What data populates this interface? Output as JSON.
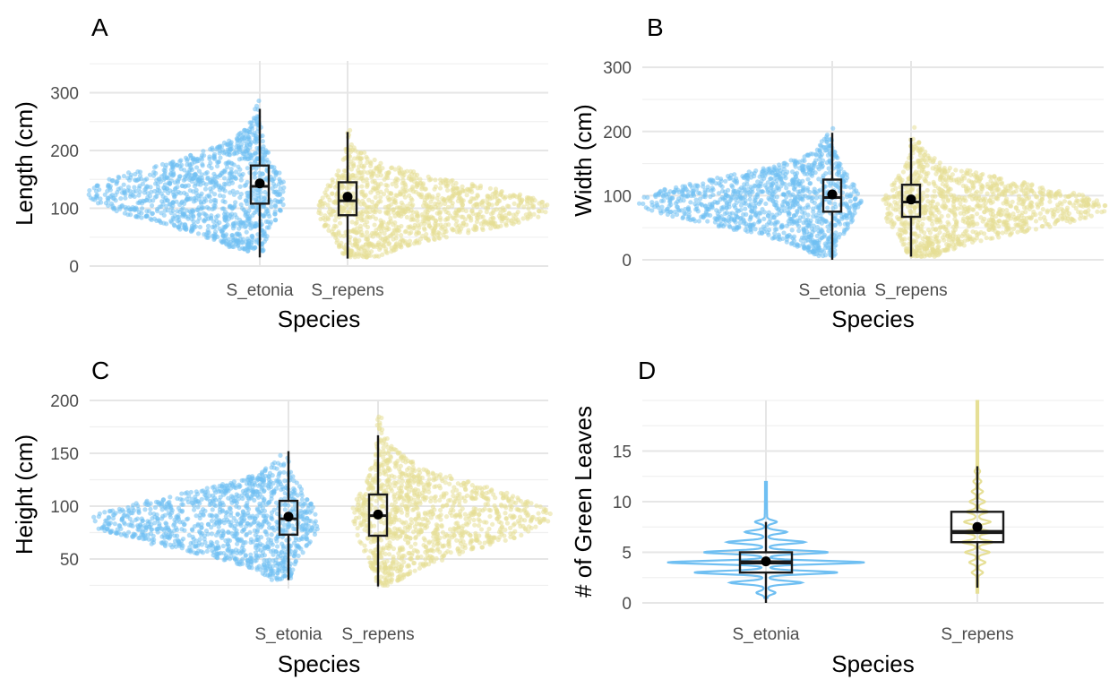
{
  "colors": {
    "S_etonia": "#6fbff2",
    "S_repens": "#e6df96",
    "box": "#1a1a1a",
    "mean": "#000000",
    "grid": "#e6e6e6"
  },
  "chart_data": [
    {
      "panel_label": "A",
      "type": "violin-box",
      "style": "mirrored-jitter",
      "xlabel": "Species",
      "ylabel": "Length (cm)",
      "categories": [
        "S_etonia",
        "S_repens"
      ],
      "ylim": [
        0,
        355
      ],
      "yticks": [
        0,
        100,
        200,
        300
      ],
      "grid": true,
      "groups": [
        {
          "name": "S_etonia",
          "whisker_low": 15,
          "q1": 108,
          "median": 138,
          "q3": 174,
          "whisker_high": 272,
          "mean": 143,
          "min": 25,
          "max": 345,
          "mode": 125
        },
        {
          "name": "S_repens",
          "whisker_low": 13,
          "q1": 88,
          "median": 113,
          "q3": 145,
          "whisker_high": 232,
          "mean": 120,
          "min": 15,
          "max": 315,
          "mode": 100
        }
      ]
    },
    {
      "panel_label": "B",
      "type": "violin-box",
      "style": "mirrored-jitter",
      "xlabel": "Species",
      "ylabel": "Width (cm)",
      "categories": [
        "S_etonia",
        "S_repens"
      ],
      "ylim": [
        0,
        310
      ],
      "yticks": [
        0,
        100,
        200,
        300
      ],
      "grid": true,
      "groups": [
        {
          "name": "S_etonia",
          "whisker_low": 0,
          "q1": 75,
          "median": 97,
          "q3": 125,
          "whisker_high": 198,
          "mean": 102,
          "min": 5,
          "max": 305,
          "mode": 90
        },
        {
          "name": "S_repens",
          "whisker_low": 5,
          "q1": 67,
          "median": 90,
          "q3": 117,
          "whisker_high": 190,
          "mean": 94,
          "min": 5,
          "max": 295,
          "mode": 82
        }
      ]
    },
    {
      "panel_label": "C",
      "type": "violin-box",
      "style": "mirrored-jitter",
      "xlabel": "Species",
      "ylabel": "Height (cm)",
      "categories": [
        "S_etonia",
        "S_repens"
      ],
      "ylim": [
        22,
        200
      ],
      "yticks": [
        50,
        100,
        150,
        200
      ],
      "grid": true,
      "groups": [
        {
          "name": "S_etonia",
          "whisker_low": 30,
          "q1": 73,
          "median": 88,
          "q3": 105,
          "whisker_high": 152,
          "mean": 90,
          "min": 30,
          "max": 180,
          "mode": 85
        },
        {
          "name": "S_repens",
          "whisker_low": 24,
          "q1": 72,
          "median": 91,
          "q3": 111,
          "whisker_high": 167,
          "mean": 92,
          "min": 25,
          "max": 197,
          "mode": 90
        }
      ]
    },
    {
      "panel_label": "D",
      "type": "violin-box",
      "style": "violin",
      "xlabel": "Species",
      "ylabel": "# of Green Leaves",
      "categories": [
        "S_etonia",
        "S_repens"
      ],
      "ylim": [
        0,
        20
      ],
      "yticks": [
        0,
        5,
        10,
        15
      ],
      "grid": true,
      "groups": [
        {
          "name": "S_etonia",
          "whisker_low": 0,
          "q1": 3,
          "median": 4,
          "q3": 5,
          "whisker_high": 8,
          "mean": 4.1,
          "min": 0.5,
          "max": 12,
          "mode": 4,
          "density_peaks": [
            {
              "y": 1,
              "w": 0.08
            },
            {
              "y": 2,
              "w": 0.35
            },
            {
              "y": 3,
              "w": 0.72
            },
            {
              "y": 4,
              "w": 1.0
            },
            {
              "y": 5,
              "w": 0.62
            },
            {
              "y": 6,
              "w": 0.38
            },
            {
              "y": 7,
              "w": 0.2
            },
            {
              "y": 8,
              "w": 0.1
            }
          ]
        },
        {
          "name": "S_repens",
          "whisker_low": 1.5,
          "q1": 6,
          "median": 7,
          "q3": 9,
          "whisker_high": 13.5,
          "mean": 7.5,
          "min": 1,
          "max": 20,
          "mode": 7,
          "density_peaks": [
            {
              "y": 3,
              "w": 0.12
            },
            {
              "y": 4,
              "w": 0.18
            },
            {
              "y": 5,
              "w": 0.28
            },
            {
              "y": 6,
              "w": 0.36
            },
            {
              "y": 7,
              "w": 0.34
            },
            {
              "y": 8,
              "w": 0.3
            },
            {
              "y": 9,
              "w": 0.24
            },
            {
              "y": 10,
              "w": 0.17
            },
            {
              "y": 11,
              "w": 0.12
            },
            {
              "y": 12,
              "w": 0.08
            },
            {
              "y": 13,
              "w": 0.05
            }
          ]
        }
      ]
    }
  ]
}
